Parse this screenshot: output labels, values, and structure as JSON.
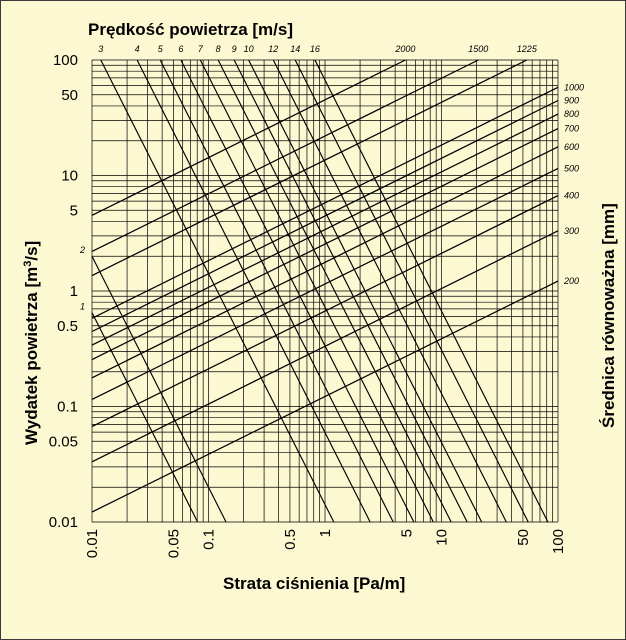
{
  "colors": {
    "background": "#fbf8d2",
    "lines": "#000000"
  },
  "chart_data": {
    "type": "line",
    "scale": "log-log",
    "grid": true,
    "title": "Prędkość powietrza [m/s]",
    "xlabel": "Strata ciśnienia [Pa/m]",
    "ylabel": "Wydatek powietrza [m³/s]",
    "ylabel_parts": [
      "Wydatek powietrza [m",
      "3",
      "/s]"
    ],
    "right_label": "Średnica równoważna [mm]",
    "xlim": [
      0.01,
      100
    ],
    "ylim": [
      0.01,
      100
    ],
    "x_ticks": [
      {
        "value": 0.01,
        "label": "0.01"
      },
      {
        "value": 0.05,
        "label": "0.05"
      },
      {
        "value": 0.1,
        "label": "0.1"
      },
      {
        "value": 0.5,
        "label": "0.5"
      },
      {
        "value": 1,
        "label": "1"
      },
      {
        "value": 5,
        "label": "5"
      },
      {
        "value": 10,
        "label": "10"
      },
      {
        "value": 50,
        "label": "50"
      },
      {
        "value": 100,
        "label": "100"
      }
    ],
    "y_ticks": [
      {
        "value": 0.01,
        "label": "0.01"
      },
      {
        "value": 0.05,
        "label": "0.05"
      },
      {
        "value": 0.1,
        "label": "0.1"
      },
      {
        "value": 0.5,
        "label": "0.5"
      },
      {
        "value": 1,
        "label": "1"
      },
      {
        "value": 5,
        "label": "5"
      },
      {
        "value": 10,
        "label": "10"
      },
      {
        "value": 50,
        "label": "50"
      },
      {
        "value": 100,
        "label": "100"
      }
    ],
    "velocity_lines": [
      {
        "label": "1",
        "q_at_x001": 0.65,
        "label_pos": "left"
      },
      {
        "label": "2",
        "q_at_x001": 2.0,
        "label_pos": "left"
      },
      {
        "label": "3",
        "x_at_y100": 0.0119,
        "label_pos": "top"
      },
      {
        "label": "4",
        "x_at_y100": 0.0244,
        "label_pos": "top"
      },
      {
        "label": "5",
        "x_at_y100": 0.0385,
        "label_pos": "top"
      },
      {
        "label": "6",
        "x_at_y100": 0.0579,
        "label_pos": "top"
      },
      {
        "label": "7",
        "x_at_y100": 0.0851,
        "label_pos": "top"
      },
      {
        "label": "8",
        "x_at_y100": 0.121,
        "label_pos": "top"
      },
      {
        "label": "9",
        "x_at_y100": 0.166,
        "label_pos": "top"
      },
      {
        "label": "10",
        "x_at_y100": 0.221,
        "label_pos": "top"
      },
      {
        "label": "12",
        "x_at_y100": 0.36,
        "label_pos": "top"
      },
      {
        "label": "14",
        "x_at_y100": 0.555,
        "label_pos": "top"
      },
      {
        "label": "16",
        "x_at_y100": 0.819,
        "label_pos": "top"
      }
    ],
    "diameter_lines": [
      {
        "label": "200",
        "q_at_x100": 1.22
      },
      {
        "label": "300",
        "q_at_x100": 3.32
      },
      {
        "label": "400",
        "q_at_x100": 6.7
      },
      {
        "label": "500",
        "q_at_x100": 11.5
      },
      {
        "label": "600",
        "q_at_x100": 17.7
      },
      {
        "label": "700",
        "q_at_x100": 25.5
      },
      {
        "label": "800",
        "q_at_x100": 34.0
      },
      {
        "label": "900",
        "q_at_x100": 44.6
      },
      {
        "label": "1000",
        "q_at_x100": 58.0
      },
      {
        "label": "1225",
        "x_at_y100": 54.0,
        "label_pos": "top"
      },
      {
        "label": "1500",
        "x_at_y100": 20.7,
        "label_pos": "top"
      },
      {
        "label": "2000",
        "x_at_y100": 4.9,
        "label_pos": "top"
      }
    ]
  }
}
